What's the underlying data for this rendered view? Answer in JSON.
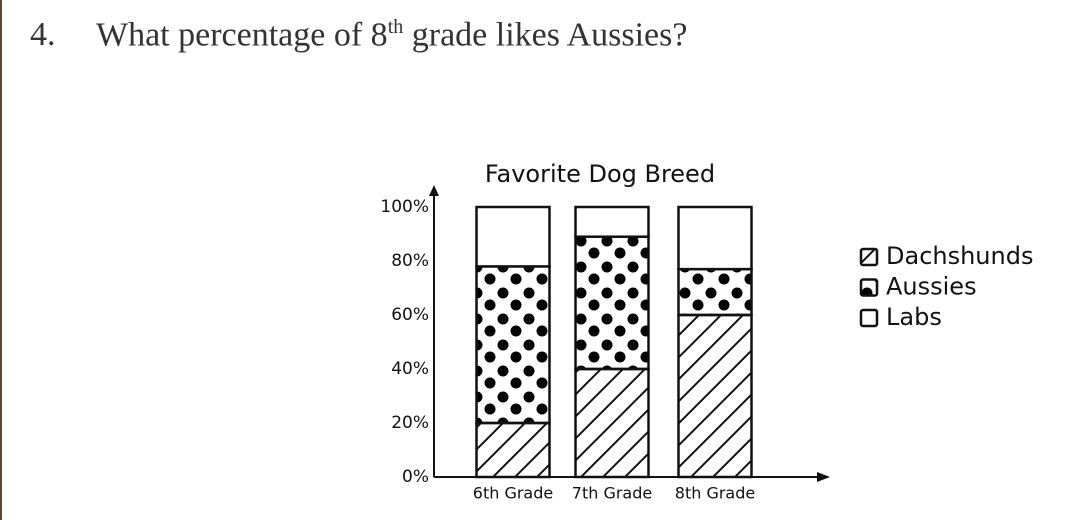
{
  "question": {
    "number": "4.",
    "text_parts": [
      "What percentage of 8",
      "th",
      " grade likes Aussies?"
    ]
  },
  "chart_data": {
    "type": "stacked_bar",
    "title": "Favorite Dog Breed",
    "categories": [
      "6th Grade",
      "7th Grade",
      "8th Grade"
    ],
    "series": [
      {
        "name": "Dachshunds",
        "color": "#ffffff",
        "pattern": "hatch",
        "values": [
          20,
          40,
          60
        ]
      },
      {
        "name": "Aussies",
        "color": "#ffffff",
        "pattern": "dots",
        "values": [
          58,
          49,
          17
        ]
      },
      {
        "name": "Labs",
        "color": "#ffffff",
        "pattern": "none",
        "values": [
          22,
          11,
          23
        ]
      }
    ],
    "ylim": [
      0,
      100
    ],
    "yticks": [
      {
        "value": 0,
        "label": "0%"
      },
      {
        "value": 20,
        "label": "20%"
      },
      {
        "value": 40,
        "label": "40%"
      },
      {
        "value": 60,
        "label": "60%"
      },
      {
        "value": 80,
        "label": "80%"
      },
      {
        "value": 100,
        "label": "100%"
      }
    ],
    "grid": false,
    "legend": "right"
  }
}
